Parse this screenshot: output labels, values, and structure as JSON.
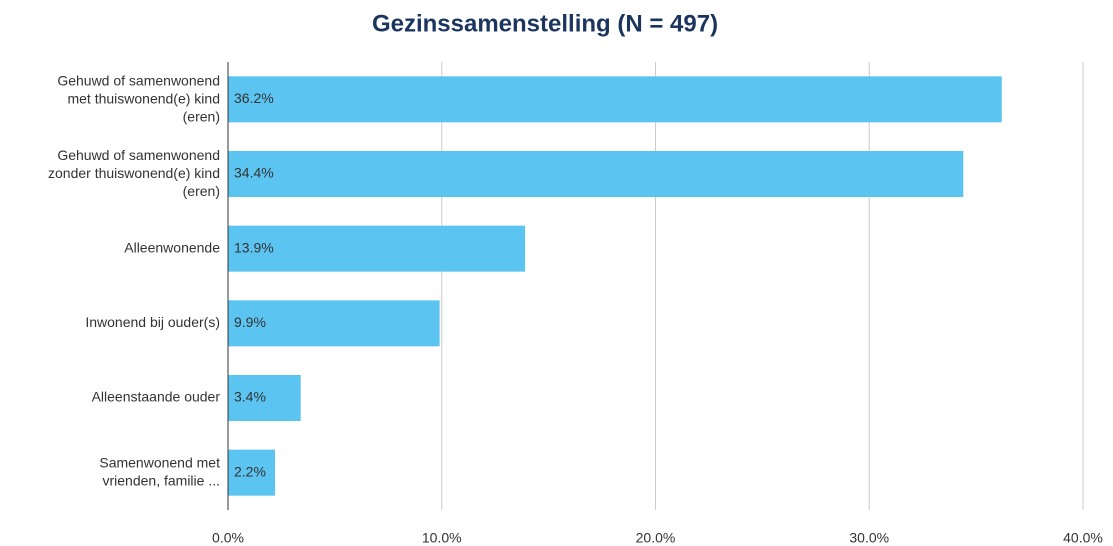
{
  "chart_data": {
    "type": "hbar",
    "title": "Gezinssamenstelling (N = 497)",
    "categories": [
      "Gehuwd of samenwonend\nmet thuiswonend(e) kind\n(eren)",
      "Gehuwd of samenwonend\nzonder thuiswonend(e) kind\n(eren)",
      "Alleenwonende",
      "Inwonend bij ouder(s)",
      "Alleenstaande ouder",
      "Samenwonend met\nvrienden, familie ..."
    ],
    "values": [
      36.2,
      34.4,
      13.9,
      9.9,
      3.4,
      2.2
    ],
    "value_labels": [
      "36.2%",
      "34.4%",
      "13.9%",
      "9.9%",
      "3.4%",
      "2.2%"
    ],
    "color": "#5bc4f1",
    "xlim": [
      0,
      40
    ],
    "xticks": [
      {
        "value": 0,
        "label": "0.0%"
      },
      {
        "value": 10,
        "label": "10.0%"
      },
      {
        "value": 20,
        "label": "20.0%"
      },
      {
        "value": 30,
        "label": "30.0%"
      },
      {
        "value": 40,
        "label": "40.0%"
      }
    ],
    "grid": true
  }
}
